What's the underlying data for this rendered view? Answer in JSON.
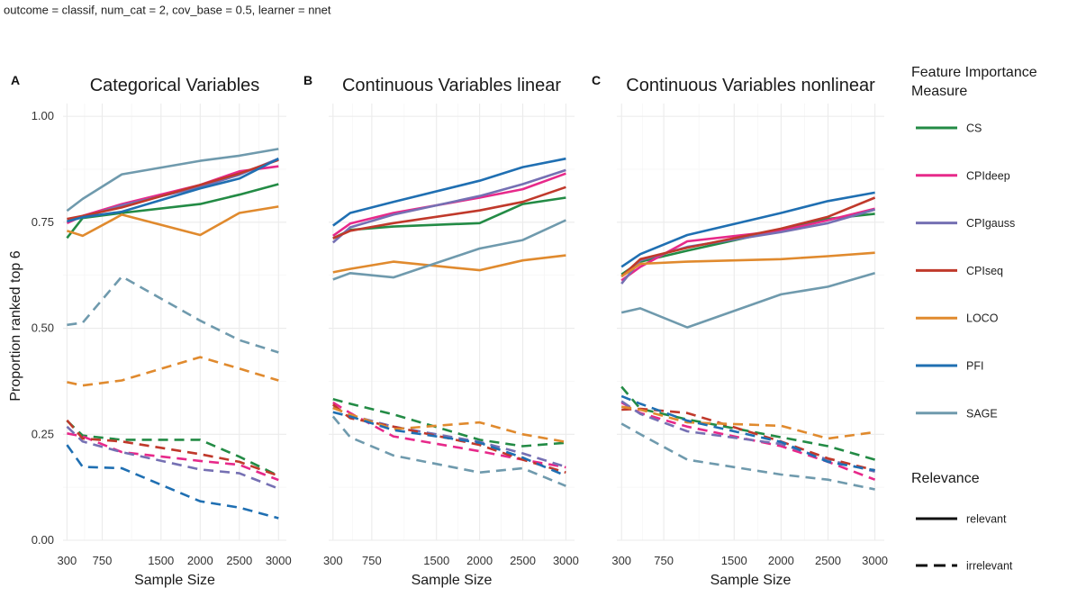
{
  "caption": "outcome = classif, num_cat = 2, cov_base = 0.5, learner = nnet",
  "legend": {
    "measure_title_line1": "Feature Importance",
    "measure_title_line2": "Measure",
    "relevance_title": "Relevance",
    "relevance_items": [
      {
        "label": "relevant",
        "dash": "solid"
      },
      {
        "label": "irrelevant",
        "dash": "dashed"
      }
    ]
  },
  "colors": {
    "CS": "#238b45",
    "CPIdeep": "#e7298a",
    "CPIgauss": "#7570b3",
    "CPIseq": "#c0392b",
    "LOCO": "#e08a2e",
    "PFI": "#1f6fb2",
    "SAGE": "#6f9aad"
  },
  "chart_data": {
    "type": "line",
    "ylabel": "Proportion ranked top 6",
    "xlabel": "Sample Size",
    "ylim": [
      0,
      1.03
    ],
    "xlim": [
      250,
      3100
    ],
    "x": [
      300,
      500,
      1000,
      2000,
      2500,
      3000
    ],
    "x_ticks": [
      300,
      750,
      1500,
      2000,
      2500,
      3000
    ],
    "y_ticks": [
      0.0,
      0.25,
      0.5,
      0.75,
      1.0
    ],
    "y_tick_labels": [
      "0.00",
      "0.25",
      "0.50",
      "0.75",
      "1.00"
    ],
    "measures": [
      "CS",
      "CPIdeep",
      "CPIgauss",
      "CPIseq",
      "LOCO",
      "PFI",
      "SAGE"
    ],
    "panels": [
      {
        "letter": "A",
        "title": "Categorical Variables",
        "relevant": {
          "CS": [
            0.713,
            0.76,
            0.772,
            0.793,
            0.815,
            0.84
          ],
          "CPIdeep": [
            0.748,
            0.765,
            0.793,
            0.838,
            0.87,
            0.882
          ],
          "CPIgauss": [
            0.752,
            0.762,
            0.79,
            0.833,
            0.862,
            0.9
          ],
          "CPIseq": [
            0.758,
            0.765,
            0.785,
            0.838,
            0.865,
            0.897
          ],
          "LOCO": [
            0.73,
            0.718,
            0.768,
            0.72,
            0.772,
            0.787
          ],
          "PFI": [
            0.752,
            0.762,
            0.775,
            0.83,
            0.853,
            0.9
          ],
          "SAGE": [
            0.777,
            0.805,
            0.863,
            0.895,
            0.907,
            0.923
          ]
        },
        "irrelevant": {
          "CS": [
            0.282,
            0.247,
            0.237,
            0.237,
            0.197,
            0.152
          ],
          "CPIdeep": [
            0.252,
            0.245,
            0.208,
            0.187,
            0.178,
            0.142
          ],
          "CPIgauss": [
            0.268,
            0.233,
            0.208,
            0.167,
            0.158,
            0.122
          ],
          "CPIseq": [
            0.283,
            0.24,
            0.233,
            0.203,
            0.185,
            0.152
          ],
          "LOCO": [
            0.373,
            0.365,
            0.377,
            0.432,
            0.405,
            0.377
          ],
          "PFI": [
            0.225,
            0.173,
            0.17,
            0.092,
            0.077,
            0.052
          ],
          "SAGE": [
            0.508,
            0.513,
            0.622,
            0.518,
            0.472,
            0.443
          ]
        }
      },
      {
        "letter": "B",
        "title": "Continuous Variables linear",
        "relevant": {
          "CS": [
            0.712,
            0.732,
            0.74,
            0.748,
            0.793,
            0.808
          ],
          "CPIdeep": [
            0.718,
            0.747,
            0.772,
            0.808,
            0.828,
            0.865
          ],
          "CPIgauss": [
            0.702,
            0.738,
            0.768,
            0.812,
            0.84,
            0.873
          ],
          "CPIseq": [
            0.712,
            0.73,
            0.748,
            0.778,
            0.798,
            0.833
          ],
          "LOCO": [
            0.632,
            0.64,
            0.657,
            0.637,
            0.66,
            0.672
          ],
          "PFI": [
            0.742,
            0.772,
            0.798,
            0.848,
            0.88,
            0.9
          ],
          "SAGE": [
            0.615,
            0.63,
            0.62,
            0.688,
            0.708,
            0.755
          ]
        },
        "irrelevant": {
          "CS": [
            0.333,
            0.322,
            0.297,
            0.237,
            0.222,
            0.23
          ],
          "CPIdeep": [
            0.325,
            0.3,
            0.245,
            0.21,
            0.19,
            0.172
          ],
          "CPIgauss": [
            0.313,
            0.295,
            0.268,
            0.232,
            0.205,
            0.173
          ],
          "CPIseq": [
            0.32,
            0.288,
            0.268,
            0.225,
            0.19,
            0.16
          ],
          "LOCO": [
            0.312,
            0.297,
            0.262,
            0.278,
            0.25,
            0.232
          ],
          "PFI": [
            0.302,
            0.292,
            0.26,
            0.23,
            0.195,
            0.152
          ],
          "SAGE": [
            0.292,
            0.243,
            0.2,
            0.16,
            0.17,
            0.128
          ]
        }
      },
      {
        "letter": "C",
        "title": "Continuous Variables nonlinear",
        "relevant": {
          "CS": [
            0.627,
            0.657,
            0.683,
            0.732,
            0.758,
            0.77
          ],
          "CPIdeep": [
            0.613,
            0.645,
            0.705,
            0.73,
            0.755,
            0.782
          ],
          "CPIgauss": [
            0.605,
            0.66,
            0.692,
            0.727,
            0.748,
            0.78
          ],
          "CPIseq": [
            0.622,
            0.663,
            0.69,
            0.735,
            0.763,
            0.808
          ],
          "LOCO": [
            0.622,
            0.652,
            0.657,
            0.663,
            0.67,
            0.678
          ],
          "PFI": [
            0.645,
            0.675,
            0.72,
            0.772,
            0.8,
            0.82
          ],
          "SAGE": [
            0.537,
            0.547,
            0.502,
            0.58,
            0.598,
            0.63
          ]
        },
        "irrelevant": {
          "CS": [
            0.362,
            0.31,
            0.285,
            0.243,
            0.222,
            0.19
          ],
          "CPIdeep": [
            0.325,
            0.3,
            0.268,
            0.222,
            0.185,
            0.143
          ],
          "CPIgauss": [
            0.328,
            0.298,
            0.257,
            0.227,
            0.19,
            0.162
          ],
          "CPIseq": [
            0.308,
            0.31,
            0.3,
            0.233,
            0.193,
            0.165
          ],
          "LOCO": [
            0.315,
            0.308,
            0.278,
            0.27,
            0.24,
            0.255
          ],
          "PFI": [
            0.34,
            0.322,
            0.282,
            0.232,
            0.185,
            0.165
          ],
          "SAGE": [
            0.275,
            0.25,
            0.19,
            0.155,
            0.143,
            0.12
          ]
        }
      }
    ]
  }
}
